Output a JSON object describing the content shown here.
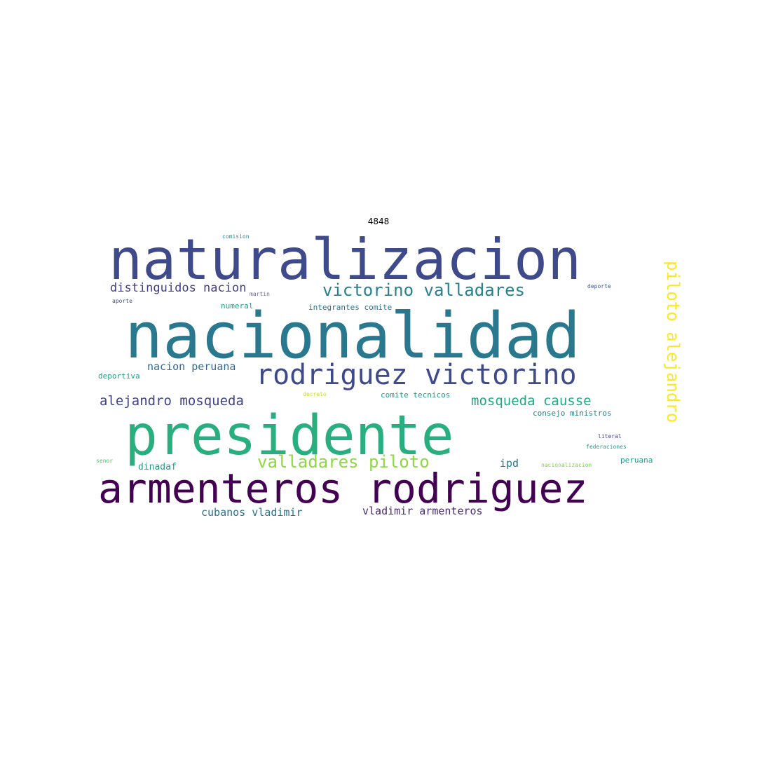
{
  "title": "4848",
  "words": [
    {
      "text": "naturalizacion",
      "color": "#3e4a89"
    },
    {
      "text": "nacionalidad",
      "color": "#2a788e"
    },
    {
      "text": "presidente",
      "color": "#29af7f"
    },
    {
      "text": "armenteros rodriguez",
      "color": "#440154"
    },
    {
      "text": "rodriguez victorino",
      "color": "#3e4a89"
    },
    {
      "text": "victorino valladares",
      "color": "#26828e"
    },
    {
      "text": "piloto alejandro",
      "color": "#fde725"
    },
    {
      "text": "valladares piloto",
      "color": "#8fd744"
    },
    {
      "text": "alejandro mosqueda",
      "color": "#414487"
    },
    {
      "text": "mosqueda causse",
      "color": "#22a884"
    },
    {
      "text": "distinguidos nacion",
      "color": "#433e85"
    },
    {
      "text": "nacion peruana",
      "color": "#31688e"
    },
    {
      "text": "cubanos vladimir",
      "color": "#2c728e"
    },
    {
      "text": "vladimir armenteros",
      "color": "#482878"
    },
    {
      "text": "ipd",
      "color": "#2a788e"
    },
    {
      "text": "dinadaf",
      "color": "#1f9e89"
    },
    {
      "text": "peruana",
      "color": "#1f9e89"
    },
    {
      "text": "deportiva",
      "color": "#20a386"
    },
    {
      "text": "numeral",
      "color": "#1fa088"
    },
    {
      "text": "integrantes comite",
      "color": "#2d718e"
    },
    {
      "text": "comite tecnicos",
      "color": "#1f9a8a"
    },
    {
      "text": "consejo ministros",
      "color": "#277f8e"
    },
    {
      "text": "deporte",
      "color": "#3b528b"
    },
    {
      "text": "aporte",
      "color": "#3b528b"
    },
    {
      "text": "comision",
      "color": "#23898e"
    },
    {
      "text": "martin",
      "color": "#6a6a9a"
    },
    {
      "text": "decreto",
      "color": "#c2df23"
    },
    {
      "text": "federaciones",
      "color": "#1fa187"
    },
    {
      "text": "literal",
      "color": "#414487"
    },
    {
      "text": "senor",
      "color": "#50c46a"
    },
    {
      "text": "nacionalizacion",
      "color": "#7ad151"
    }
  ]
}
